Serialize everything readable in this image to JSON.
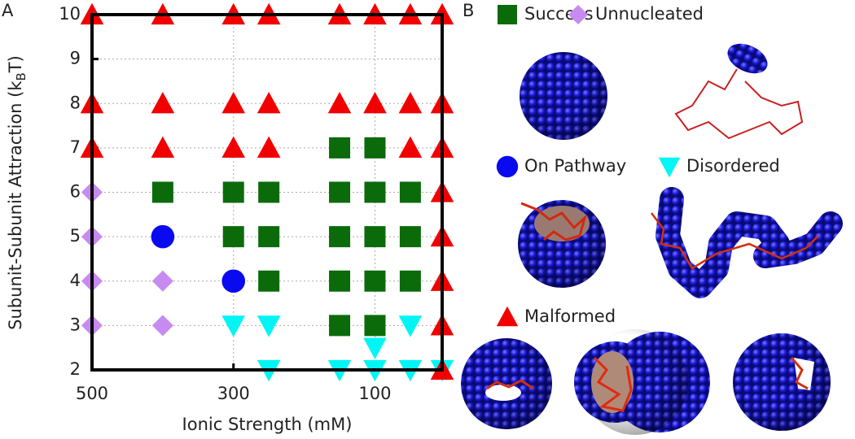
{
  "chart_data": {
    "type": "scatter",
    "panel_labels": [
      "A",
      "B"
    ],
    "xlabel": "Ionic Strength (mM)",
    "ylabel": [
      "Subunit-Subunit Attraction (k",
      "B",
      "T)"
    ],
    "xlim": [
      500,
      5
    ],
    "xticks": [
      500,
      300,
      100
    ],
    "ylim": [
      2,
      10
    ],
    "yticks": [
      2,
      3,
      4,
      5,
      6,
      7,
      8,
      9,
      10
    ],
    "grid": true,
    "series": [
      {
        "name": "Success",
        "color": "#0b6b0b",
        "marker": "square",
        "x": [
          400,
          300,
          300,
          250,
          250,
          250,
          150,
          150,
          150,
          150,
          150,
          100,
          100,
          100,
          100,
          100,
          50,
          50,
          50
        ],
        "y": [
          6,
          6,
          5,
          6,
          5,
          4,
          7,
          6,
          5,
          4,
          3,
          7,
          6,
          5,
          4,
          3,
          6,
          5,
          4
        ]
      },
      {
        "name": "Unnucleated",
        "color": "#c68af0",
        "marker": "diamond",
        "x": [
          500,
          500,
          500,
          500,
          400,
          400
        ],
        "y": [
          6,
          5,
          4,
          3,
          4,
          3
        ]
      },
      {
        "name": "On Pathway",
        "color": "#0a0af0",
        "marker": "circle",
        "x": [
          400,
          300
        ],
        "y": [
          5,
          4
        ]
      },
      {
        "name": "Disordered",
        "color": "#00f5f5",
        "marker": "triangle-down",
        "x": [
          300,
          250,
          250,
          150,
          100,
          100,
          50,
          50,
          5
        ],
        "y": [
          3,
          3,
          2,
          2,
          2.5,
          2,
          3,
          2,
          2
        ]
      },
      {
        "name": "Malformed",
        "color": "#f20000",
        "marker": "triangle-up",
        "x": [
          500,
          500,
          500,
          400,
          400,
          400,
          300,
          300,
          300,
          250,
          250,
          250,
          150,
          150,
          100,
          100,
          50,
          50,
          50,
          5,
          5,
          5,
          5,
          5,
          5,
          5,
          5
        ],
        "y": [
          10,
          8,
          7,
          10,
          8,
          7,
          10,
          8,
          7,
          10,
          8,
          7,
          10,
          8,
          10,
          8,
          10,
          8,
          7,
          10,
          8,
          7,
          6,
          5,
          4,
          3,
          2
        ]
      }
    ]
  }
}
